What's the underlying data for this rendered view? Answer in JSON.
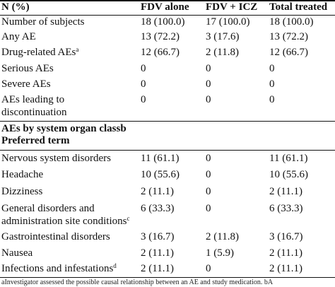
{
  "header": {
    "col0": "N (%)",
    "col1": "FDV alone",
    "col2": "FDV + ICZ",
    "col3": "Total treated"
  },
  "rows": [
    {
      "label": "Number of subjects",
      "sup": "",
      "v1": "18 (100.0)",
      "v2": "17 (100.0)",
      "v3": "18 (100.0)"
    },
    {
      "label": "Any AE",
      "sup": "",
      "v1": "13 (72.2)",
      "v2": "3 (17.6)",
      "v3": "13 (72.2)"
    },
    {
      "label": "Drug-related AEs",
      "sup": "a",
      "v1": "12 (66.7)",
      "v2": "2 (11.8)",
      "v3": "12 (66.7)"
    },
    {
      "label": "Serious AEs",
      "sup": "",
      "v1": "0",
      "v2": "0",
      "v3": "0"
    },
    {
      "label": "Severe AEs",
      "sup": "",
      "v1": "0",
      "v2": "0",
      "v3": "0"
    },
    {
      "label": "AEs leading to discontinuation",
      "sup": "",
      "v1": "0",
      "v2": "0",
      "v3": "0"
    }
  ],
  "section": {
    "line1": "AEs by system organ classb",
    "line2": "Preferred term"
  },
  "rows2": [
    {
      "label": "Nervous system disorders",
      "sup": "",
      "v1": "11 (61.1)",
      "v2": "0",
      "v3": "11 (61.1)"
    },
    {
      "label": "Headache",
      "sup": "",
      "v1": "10 (55.6)",
      "v2": "0",
      "v3": "10 (55.6)"
    },
    {
      "label": "Dizziness",
      "sup": "",
      "v1": "2 (11.1)",
      "v2": "0",
      "v3": "2 (11.1)"
    },
    {
      "label": "General disorders and administration site conditions",
      "sup": "c",
      "v1": "6 (33.3)",
      "v2": "0",
      "v3": "6 (33.3)"
    },
    {
      "label": "Gastrointestinal disorders",
      "sup": "",
      "v1": "3 (16.7)",
      "v2": "2 (11.8)",
      "v3": "3 (16.7)"
    },
    {
      "label": "Nausea",
      "sup": "",
      "v1": "2 (11.1)",
      "v2": "1 (5.9)",
      "v3": "2 (11.1)"
    },
    {
      "label": "Infections and infestations",
      "sup": "d",
      "v1": "2 (11.1)",
      "v2": "0",
      "v3": "2 (11.1)"
    }
  ],
  "footnote": "aInvestigator assessed the possible causal relationship between an AE and study medication. bA"
}
